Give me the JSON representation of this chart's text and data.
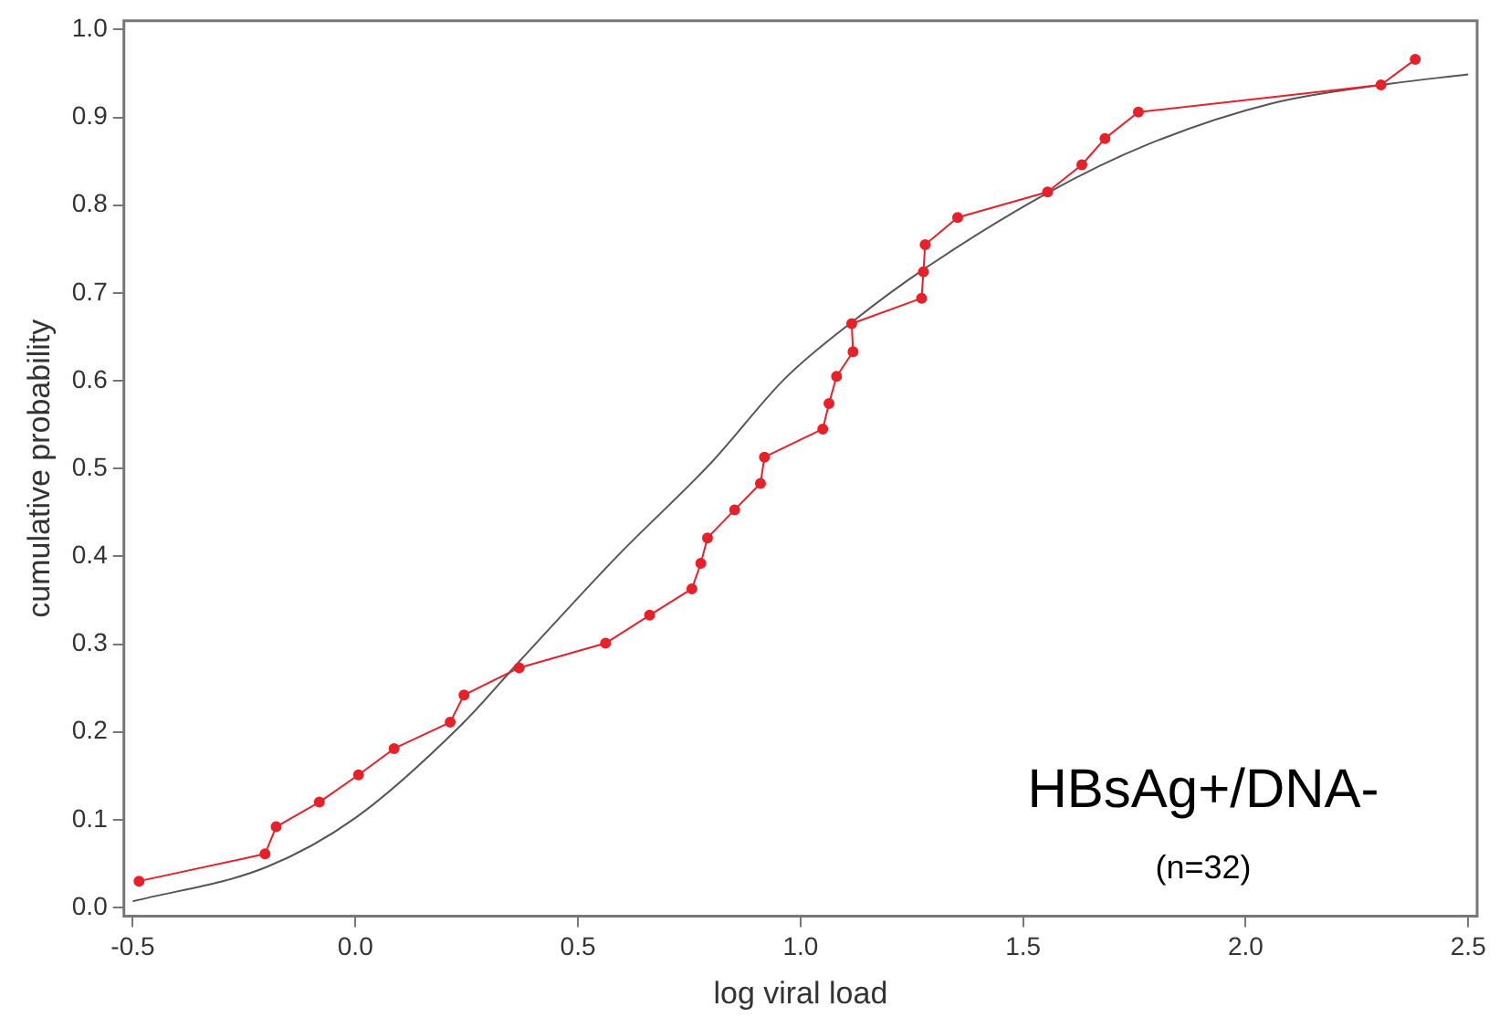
{
  "chart_data": {
    "type": "line",
    "xlabel": "log viral load",
    "ylabel": "cumulative probability",
    "xlim": [
      -0.52,
      2.52
    ],
    "ylim": [
      -0.01,
      1.01
    ],
    "xticks": [
      {
        "value": -0.5,
        "label": "-0.5"
      },
      {
        "value": 0,
        "label": "0.0"
      },
      {
        "value": 0.5,
        "label": "0.5"
      },
      {
        "value": 1,
        "label": "1.0"
      },
      {
        "value": 1.5,
        "label": "1.5"
      },
      {
        "value": 2,
        "label": "2.0"
      },
      {
        "value": 2.5,
        "label": "2.5"
      }
    ],
    "yticks": [
      {
        "value": 0,
        "label": "0.0"
      },
      {
        "value": 0.1,
        "label": "0.1"
      },
      {
        "value": 0.2,
        "label": "0.2"
      },
      {
        "value": 0.3,
        "label": "0.3"
      },
      {
        "value": 0.4,
        "label": "0.4"
      },
      {
        "value": 0.5,
        "label": "0.5"
      },
      {
        "value": 0.6,
        "label": "0.6"
      },
      {
        "value": 0.7,
        "label": "0.7"
      },
      {
        "value": 0.8,
        "label": "0.8"
      },
      {
        "value": 0.9,
        "label": "0.9"
      },
      {
        "value": 1,
        "label": "1.0"
      }
    ],
    "grid": false,
    "legend": false,
    "series": [
      {
        "color": "#e8202a",
        "marker": "circle",
        "line_style": "solid",
        "x": [
          -0.486,
          -0.203,
          -0.178,
          -0.081,
          0.007,
          0.087,
          0.213,
          0.244,
          0.368,
          0.562,
          0.661,
          0.756,
          0.776,
          0.791,
          0.852,
          0.91,
          0.919,
          1.05,
          1.064,
          1.081,
          1.118,
          1.115,
          1.272,
          1.276,
          1.28,
          1.353,
          1.555,
          1.632,
          1.684,
          1.759,
          2.304,
          2.381
        ],
        "values": [
          0.03,
          0.061,
          0.092,
          0.12,
          0.151,
          0.181,
          0.211,
          0.242,
          0.273,
          0.301,
          0.333,
          0.363,
          0.392,
          0.421,
          0.453,
          0.483,
          0.513,
          0.545,
          0.574,
          0.605,
          0.633,
          0.665,
          0.694,
          0.724,
          0.755,
          0.786,
          0.815,
          0.846,
          0.876,
          0.906,
          0.937,
          0.966
        ]
      },
      {
        "color": "#555555",
        "marker": "none",
        "line_style": "solid",
        "x": [
          -0.5,
          -0.2,
          0,
          0.238,
          0.368,
          0.588,
          0.8,
          0.966,
          1.121,
          1.274,
          1.555,
          1.779,
          2.059,
          2.304,
          2.5
        ],
        "values": [
          0.007,
          0.046,
          0.102,
          0.208,
          0.28,
          0.4,
          0.507,
          0.603,
          0.669,
          0.726,
          0.814,
          0.869,
          0.916,
          0.937,
          0.949
        ]
      }
    ],
    "annotations": [
      "HBsAg+/DNA-",
      "(n=32)"
    ]
  }
}
